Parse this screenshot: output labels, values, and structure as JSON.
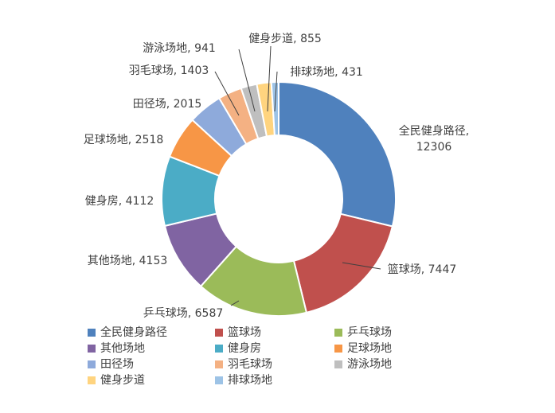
{
  "chart_data": {
    "type": "donut",
    "categories": [
      "全民健身路径",
      "篮球场",
      "乒乓球场",
      "其他场地",
      "健身房",
      "足球场地",
      "田径场",
      "羽毛球场",
      "游泳场地",
      "健身步道",
      "排球场地"
    ],
    "values": [
      12306,
      7447,
      6587,
      4153,
      4112,
      2518,
      2015,
      1403,
      941,
      855,
      431
    ],
    "value_labels": [
      "全民健身路径, 12306",
      "篮球场, 7447",
      "乒乓球场, 6587",
      "其他场地, 4153",
      "健身房, 4112",
      "足球场地, 2518",
      "田径场, 2015",
      "羽毛球场, 1403",
      "游泳场地, 941",
      "健身步道, 855",
      "排球场地, 431"
    ],
    "colors": [
      "#4f81bd",
      "#c0504d",
      "#9bbb59",
      "#8064a2",
      "#4bacc6",
      "#f79646",
      "#8eaadb",
      "#f4b183",
      "#bfbfbf",
      "#ffd47f",
      "#9dc3e6"
    ],
    "legend": "bottom"
  }
}
